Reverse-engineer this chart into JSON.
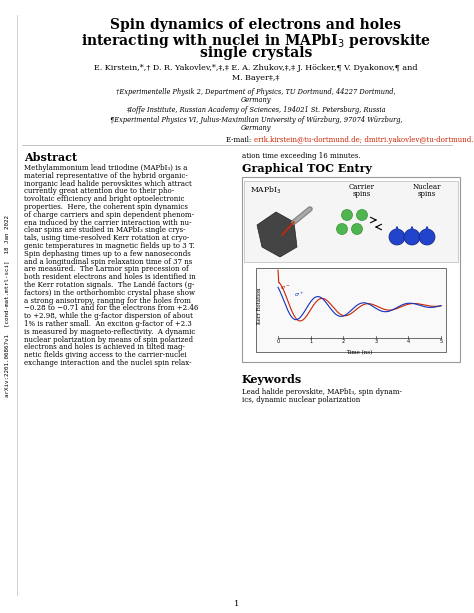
{
  "title_line1": "Spin dynamics of electrons and holes",
  "title_line2": "interacting with nuclei in MAPbI",
  "title_line2_sub": "3",
  "title_line2_rest": " perovskite",
  "title_line3": "single crystals",
  "authors": "E. Kirstein,*,† D. R. Yakovlev,*,‡,‡ E. A. Zhukov,‡,‡ J. Höcker,¶ V. Dyakonov,¶ and",
  "authors2": "M. Bayer‡,‡",
  "affil1": "†Experimentelle Physik 2, Department of Physics, TU Dortmund, 44227 Dortmund,",
  "affil1b": "Germany",
  "affil2": "‡Ioffe Institute, Russian Academy of Sciences, 194021 St. Petersburg, Russia",
  "affil3": "¶Experimental Physics VI, Julius-Maximilian University of Würzburg, 97074 Würzburg,",
  "affil3b": "Germany",
  "email_prefix": "E-mail: ",
  "email_text": "erik.kirstein@tu-dortmund.de; dmitri.yakovlev@tu-dortmund.de",
  "arxiv_label": "arXiv:2201.06867v1  [cond-mat.mtrl-sci]  18 Jan 2022",
  "abstract_title": "Abstract",
  "abstract_lines": [
    "Methylammonium lead triiodine (MAPbI₃) is a",
    "material representative of the hybrid organic-",
    "inorganic lead halide perovskites which attract",
    "currently great attention due to their pho-",
    "tovoltaic efficiency and bright optoelectronic",
    "properties.  Here, the coherent spin dynamics",
    "of charge carriers and spin dependent phenom-",
    "ena induced by the carrier interaction with nu-",
    "clear spins are studied in MAPbI₃ single crys-",
    "tals, using time-resolved Kerr rotation at cryo-",
    "genic temperatures in magnetic fields up to 3 T.",
    "Spin dephasing times up to a few nanoseconds",
    "and a longitudinal spin relaxation time of 37 ns",
    "are measured.  The Larmor spin precession of",
    "both resident electrons and holes is identified in",
    "the Kerr rotation signals.  The Landé factors (g-",
    "factors) in the orthorhombic crystal phase show",
    "a strong anisotropy, ranging for the holes from",
    "−0.28 to −0.71 and for the electrons from +2.46",
    "to +2.98, while the g-factor dispersion of about",
    "1% is rather small.  An exciton g-factor of +2.3",
    "is measured by magneto-reflectivity.  A dynamic",
    "nuclear polarization by means of spin polarized",
    "electrons and holes is achieved in tilted mag-",
    "netic fields giving access to the carrier-nuclei",
    "exchange interaction and the nuclei spin relax-"
  ],
  "right_cont": "ation time exceeding 16 minutes.",
  "toc_title": "Graphical TOC Entry",
  "toc_label1": "MAPbI",
  "toc_label1_sub": "3",
  "toc_label2": "Carrier",
  "toc_label2b": "spins",
  "toc_label3": "Nuclear",
  "toc_label3b": "spins",
  "kerr_ylabel": "Kerr Rotation",
  "kerr_xlabel": "Time (ns)",
  "kerr_xticks": [
    0,
    1,
    2,
    3,
    4,
    5
  ],
  "sigma_minus": "σ⁻",
  "sigma_plus": "σ⁺",
  "keywords_title": "Keywords",
  "keywords_lines": [
    "Lead halide perovskite, MAPbI₃, spin dynam-",
    "ics, dynamic nuclear polarization"
  ],
  "page_number": "1",
  "bg_color": "#ffffff",
  "text_color": "#000000",
  "email_color": "#cc2200",
  "red_curve_color": "#cc2200",
  "blue_curve_color": "#1133bb",
  "crystal_color": "#505050",
  "green_color": "#33aa33",
  "blue_nuclear_color": "#2244cc"
}
